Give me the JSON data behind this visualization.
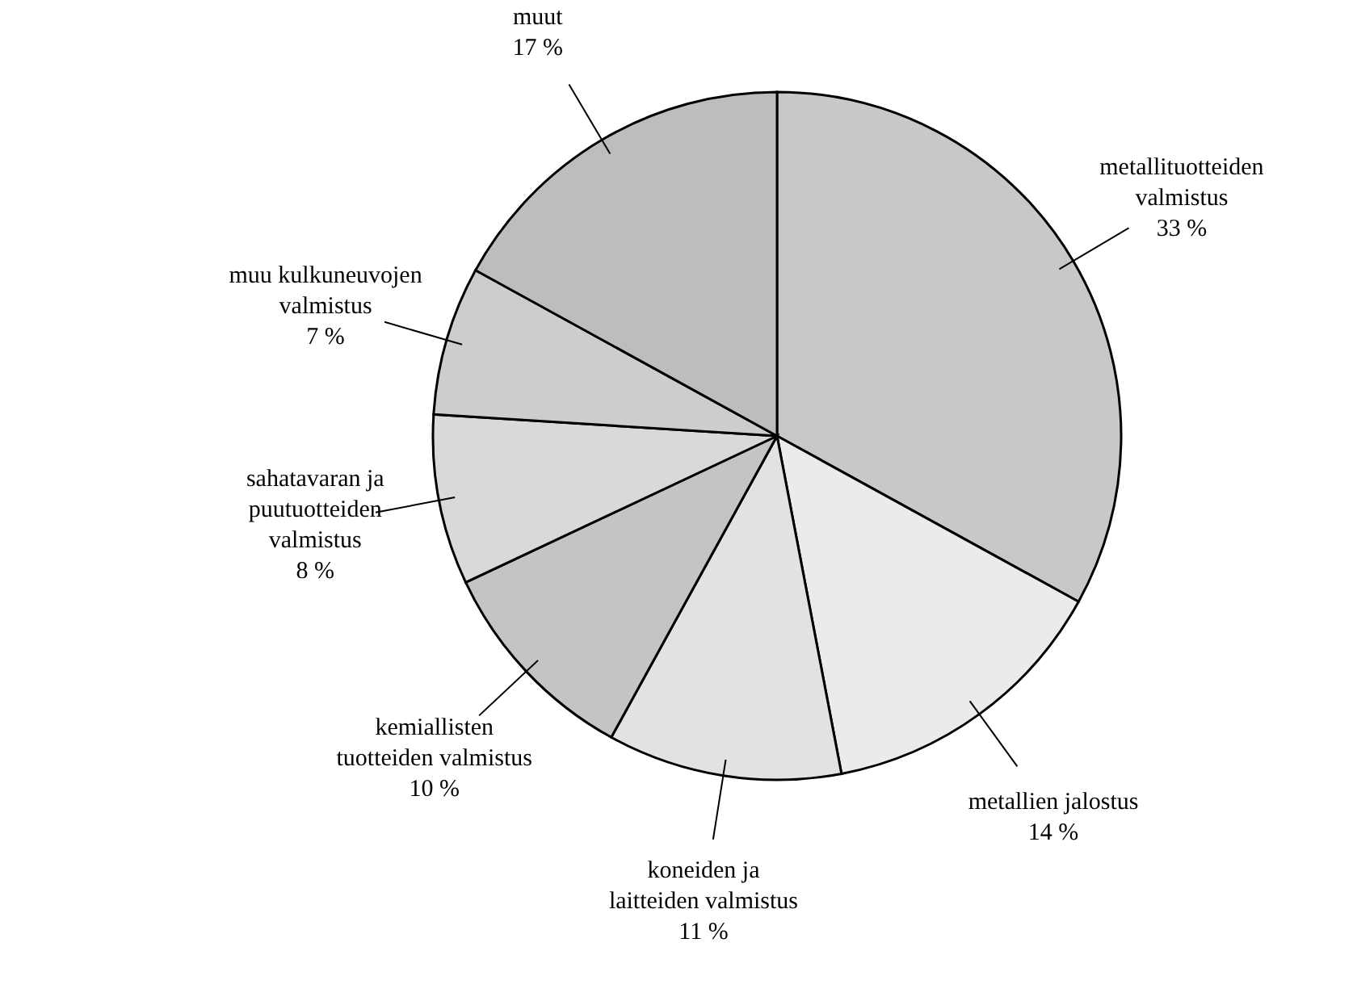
{
  "chart_data": {
    "type": "pie",
    "categories": [
      "metallituotteiden\nvalmistus",
      "metallien jalostus",
      "koneiden ja\nlaitteiden valmistus",
      "kemiallisten\ntuotteiden valmistus",
      "sahatavaran ja\npuutuotteiden\nvalmistus",
      "muu kulkuneuvojen\nvalmistus",
      "muut"
    ],
    "values": [
      33,
      14,
      11,
      10,
      8,
      7,
      17
    ],
    "value_labels": [
      "33 %",
      "14 %",
      "11 %",
      "10 %",
      "8 %",
      "7 %",
      "17 %"
    ],
    "colors": [
      "#c8c8c8",
      "#ebebeb",
      "#e2e2e2",
      "#c4c4c4",
      "#d9d9d9",
      "#cdcdcd",
      "#bdbdbd"
    ]
  }
}
